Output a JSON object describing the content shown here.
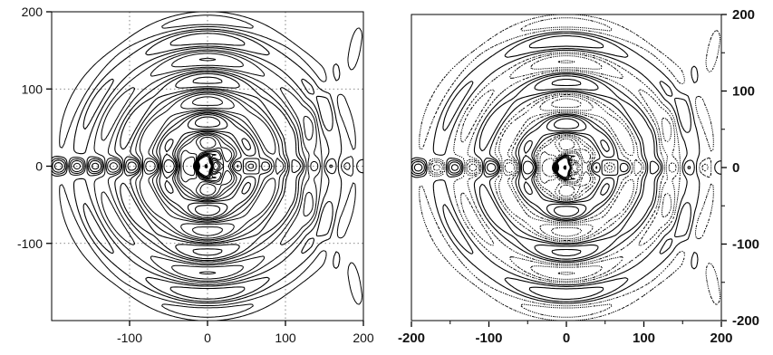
{
  "chart_data": [
    {
      "type": "contour",
      "xlabel": "",
      "ylabel": "",
      "xlim": [
        -200,
        200
      ],
      "ylim": [
        -200,
        200
      ],
      "xticks": [
        -100,
        0,
        100,
        200
      ],
      "yticks": [
        -100,
        0,
        100,
        200
      ],
      "x_tick_labels": [
        "-100",
        "0",
        "100",
        "200"
      ],
      "y_tick_labels": [
        "-100",
        "0",
        "100",
        "200"
      ],
      "grid": true,
      "y_axis_side": "left",
      "positive_contour_style": "solid",
      "negative_contour_style": "dashed",
      "line_color": "#000000"
    },
    {
      "type": "contour",
      "xlabel": "",
      "ylabel": "",
      "xlim": [
        -200,
        200
      ],
      "ylim": [
        -200,
        200
      ],
      "xticks": [
        -200,
        -100,
        0,
        100,
        200
      ],
      "yticks": [
        -200,
        -100,
        0,
        100,
        200
      ],
      "x_tick_labels": [
        "-200",
        "-100",
        "0",
        "100",
        "200"
      ],
      "y_tick_labels": [
        "-200",
        "-100",
        "0",
        "100",
        "200"
      ],
      "grid": false,
      "y_axis_side": "right",
      "positive_contour_style": "solid",
      "negative_contour_style": "dotted",
      "line_color": "#000000"
    }
  ]
}
